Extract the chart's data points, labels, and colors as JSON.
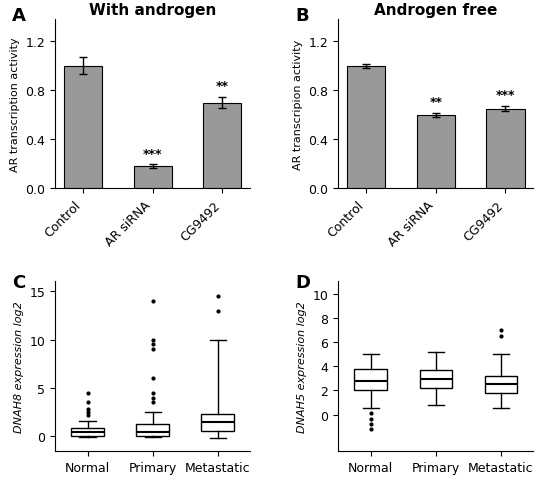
{
  "panel_A": {
    "title": "With androgen",
    "ylabel": "AR transcription activity",
    "categories": [
      "Control",
      "AR siRNA",
      "CG9492"
    ],
    "values": [
      1.0,
      0.18,
      0.7
    ],
    "errors": [
      0.07,
      0.015,
      0.045
    ],
    "significance": [
      "",
      "***",
      "**"
    ],
    "ylim": [
      0,
      1.38
    ],
    "yticks": [
      0,
      0.4,
      0.8,
      1.2
    ]
  },
  "panel_B": {
    "title": "Androgen free",
    "ylabel": "AR transcripion activity",
    "categories": [
      "Control",
      "AR siRNA",
      "CG9492"
    ],
    "values": [
      1.0,
      0.6,
      0.65
    ],
    "errors": [
      0.015,
      0.018,
      0.022
    ],
    "significance": [
      "",
      "**",
      "***"
    ],
    "ylim": [
      0,
      1.38
    ],
    "yticks": [
      0,
      0.4,
      0.8,
      1.2
    ]
  },
  "panel_C": {
    "ylabel": "DNAH8 expression log2",
    "categories": [
      "Normal",
      "Primary",
      "Metastatic"
    ],
    "box_data": {
      "Normal": {
        "q1": 0.0,
        "median": 0.4,
        "q3": 0.9,
        "whislo": -0.1,
        "whishi": 1.6,
        "fliers": [
          3.5,
          2.5,
          2.8,
          4.5,
          2.2
        ]
      },
      "Primary": {
        "q1": 0.0,
        "median": 0.4,
        "q3": 1.3,
        "whislo": -0.1,
        "whishi": 2.5,
        "fliers": [
          4.0,
          3.5,
          6.0,
          9.5,
          14.0,
          9.0,
          10.0,
          4.5
        ]
      },
      "Metastatic": {
        "q1": 0.5,
        "median": 1.5,
        "q3": 2.3,
        "whislo": -0.2,
        "whishi": 10.0,
        "fliers": [
          14.5,
          13.0
        ]
      }
    },
    "ylim": [
      -1.5,
      16
    ],
    "yticks": [
      0,
      5,
      10,
      15
    ]
  },
  "panel_D": {
    "ylabel": "DNAH5 expression log2",
    "categories": [
      "Normal",
      "Primary",
      "Metastatic"
    ],
    "box_data": {
      "Normal": {
        "q1": 2.0,
        "median": 2.8,
        "q3": 3.8,
        "whislo": 0.5,
        "whishi": 5.0,
        "fliers": [
          -0.8,
          -0.4,
          -1.2,
          0.1
        ]
      },
      "Primary": {
        "q1": 2.2,
        "median": 2.9,
        "q3": 3.7,
        "whislo": 0.8,
        "whishi": 5.2,
        "fliers": []
      },
      "Metastatic": {
        "q1": 1.8,
        "median": 2.5,
        "q3": 3.2,
        "whislo": 0.5,
        "whishi": 5.0,
        "fliers": [
          7.0,
          6.5
        ]
      }
    },
    "ylim": [
      -3,
      11
    ],
    "yticks": [
      0,
      2,
      4,
      6,
      8,
      10
    ]
  },
  "bar_color": "#999999",
  "title_fontsize": 11,
  "label_fontsize": 8,
  "tick_fontsize": 9
}
